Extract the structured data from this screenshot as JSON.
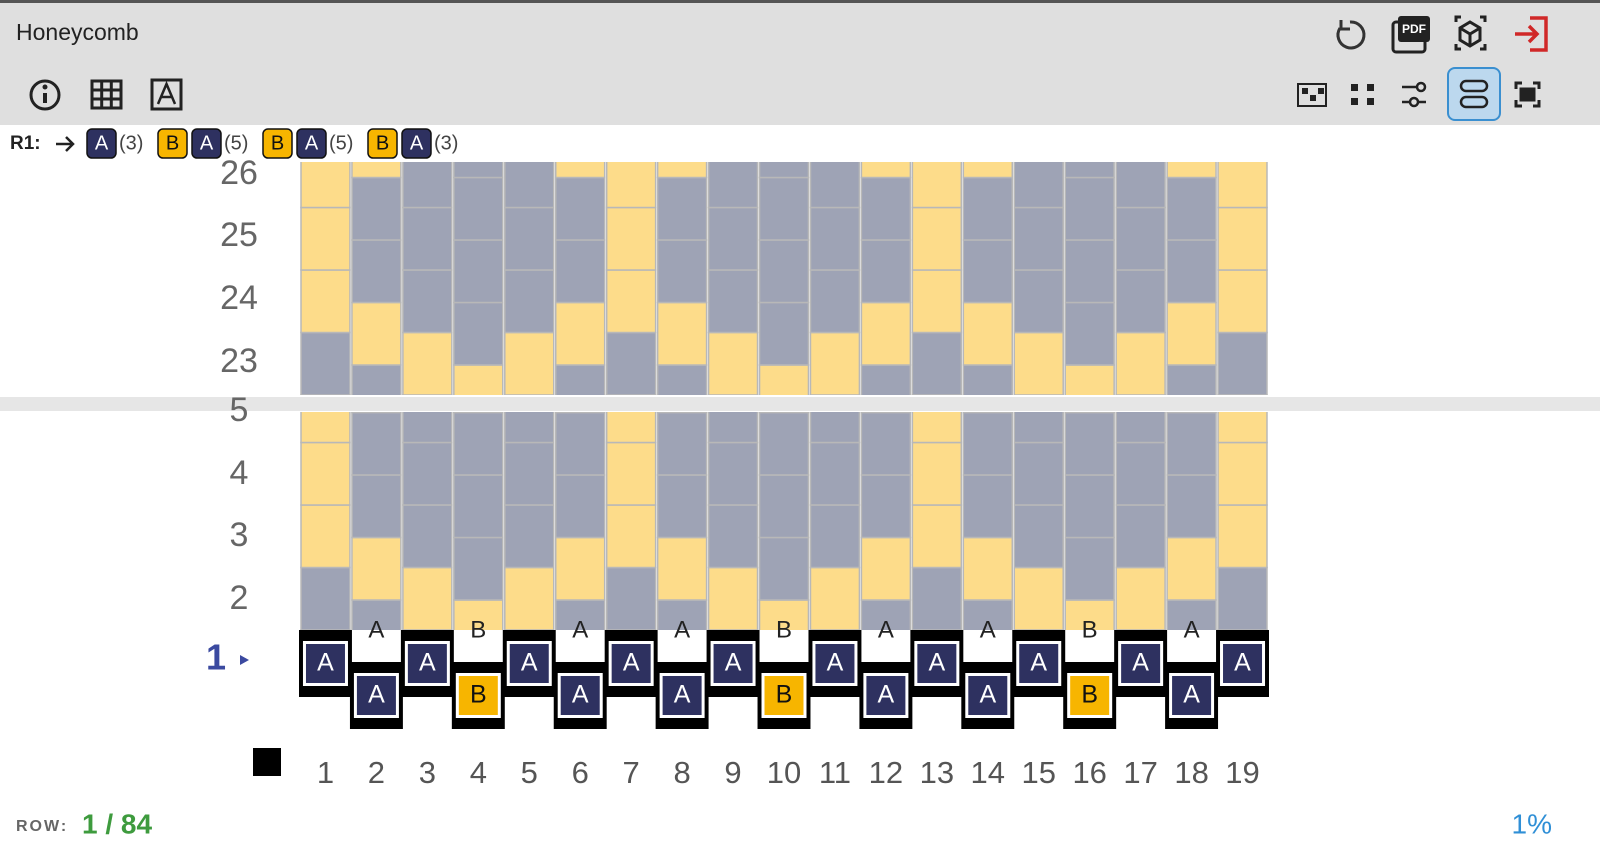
{
  "header": {
    "title": "Honeycomb",
    "pdf_icon": "PDF"
  },
  "instruction": {
    "label": "R1:",
    "items": [
      "A",
      "(3)",
      "B",
      "A",
      "(5)",
      "B",
      "A",
      "(5)",
      "B",
      "A",
      "(3)"
    ]
  },
  "rows": {
    "top": [
      26,
      25,
      24,
      23
    ],
    "bottom": [
      5,
      4,
      3,
      2,
      1
    ]
  },
  "columns": [
    1,
    2,
    3,
    4,
    5,
    6,
    7,
    8,
    9,
    10,
    11,
    12,
    13,
    14,
    15,
    16,
    17,
    18,
    19
  ],
  "row1": {
    "stitches": [
      "A",
      "A",
      "A",
      "B",
      "A",
      "A",
      "A",
      "A",
      "A",
      "B",
      "A",
      "A",
      "A",
      "A",
      "A",
      "B",
      "A",
      "A",
      "A"
    ]
  },
  "footer": {
    "row_label": "ROW:",
    "row_value": "1 / 84",
    "progress": "1%"
  }
}
